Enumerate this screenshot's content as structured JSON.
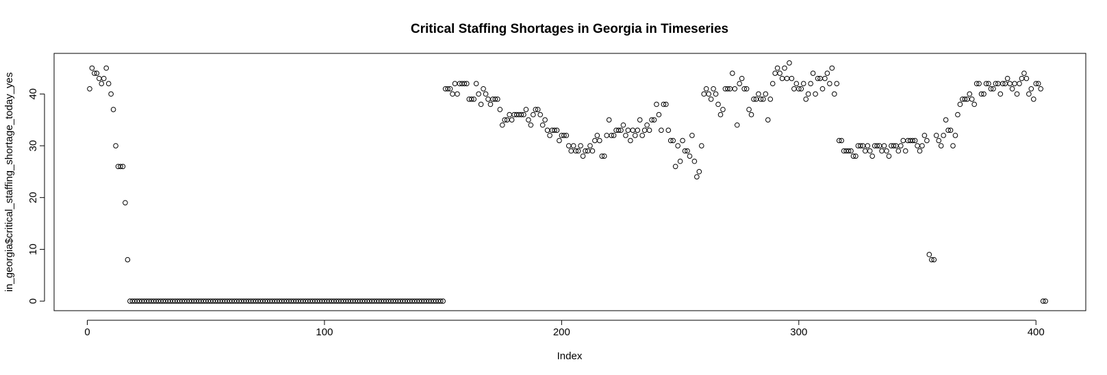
{
  "chart_data": {
    "type": "scatter",
    "title": "Critical Staffing Shortages in Georgia in Timeseries",
    "xlabel": "Index",
    "ylabel": "in_georgia$critical_staffing_shortage_today_yes",
    "xlim": [
      -14,
      421
    ],
    "ylim": [
      -1.84,
      47.84
    ],
    "xticks": [
      0,
      100,
      200,
      300,
      400
    ],
    "yticks": [
      0,
      10,
      20,
      30,
      40
    ],
    "grid": false,
    "legend": "none",
    "marker": "open-circle",
    "color": "#000000",
    "x_start": 1,
    "values": [
      41,
      45,
      44,
      44,
      43,
      42,
      43,
      45,
      42,
      40,
      37,
      30,
      26,
      26,
      26,
      19,
      8,
      0,
      0,
      0,
      0,
      0,
      0,
      0,
      0,
      0,
      0,
      0,
      0,
      0,
      0,
      0,
      0,
      0,
      0,
      0,
      0,
      0,
      0,
      0,
      0,
      0,
      0,
      0,
      0,
      0,
      0,
      0,
      0,
      0,
      0,
      0,
      0,
      0,
      0,
      0,
      0,
      0,
      0,
      0,
      0,
      0,
      0,
      0,
      0,
      0,
      0,
      0,
      0,
      0,
      0,
      0,
      0,
      0,
      0,
      0,
      0,
      0,
      0,
      0,
      0,
      0,
      0,
      0,
      0,
      0,
      0,
      0,
      0,
      0,
      0,
      0,
      0,
      0,
      0,
      0,
      0,
      0,
      0,
      0,
      0,
      0,
      0,
      0,
      0,
      0,
      0,
      0,
      0,
      0,
      0,
      0,
      0,
      0,
      0,
      0,
      0,
      0,
      0,
      0,
      0,
      0,
      0,
      0,
      0,
      0,
      0,
      0,
      0,
      0,
      0,
      0,
      0,
      0,
      0,
      0,
      0,
      0,
      0,
      0,
      0,
      0,
      0,
      0,
      0,
      0,
      0,
      0,
      0,
      0,
      41,
      41,
      41,
      40,
      42,
      40,
      42,
      42,
      42,
      42,
      39,
      39,
      39,
      42,
      40,
      38,
      41,
      40,
      39,
      38,
      39,
      39,
      39,
      37,
      34,
      35,
      35,
      36,
      35,
      36,
      36,
      36,
      36,
      36,
      37,
      35,
      34,
      36,
      37,
      37,
      36,
      34,
      35,
      33,
      32,
      33,
      33,
      33,
      31,
      32,
      32,
      32,
      30,
      29,
      30,
      29,
      29,
      30,
      28,
      29,
      29,
      30,
      29,
      31,
      32,
      31,
      28,
      28,
      32,
      35,
      32,
      32,
      33,
      33,
      33,
      34,
      32,
      33,
      31,
      33,
      32,
      33,
      35,
      32,
      33,
      34,
      33,
      35,
      35,
      38,
      36,
      33,
      38,
      38,
      33,
      31,
      31,
      26,
      30,
      27,
      31,
      29,
      29,
      28,
      32,
      27,
      24,
      25,
      30,
      40,
      41,
      40,
      39,
      41,
      40,
      38,
      36,
      37,
      41,
      41,
      41,
      44,
      41,
      34,
      42,
      43,
      41,
      41,
      37,
      36,
      39,
      39,
      40,
      39,
      39,
      40,
      35,
      39,
      42,
      44,
      45,
      44,
      43,
      45,
      43,
      46,
      43,
      41,
      42,
      41,
      41,
      42,
      39,
      40,
      42,
      44,
      40,
      43,
      43,
      41,
      43,
      44,
      42,
      45,
      40,
      42,
      31,
      31,
      29,
      29,
      29,
      29,
      28,
      28,
      30,
      30,
      30,
      29,
      30,
      29,
      28,
      30,
      30,
      30,
      29,
      30,
      29,
      28,
      30,
      30,
      30,
      29,
      30,
      31,
      29,
      31,
      31,
      31,
      31,
      30,
      29,
      30,
      32,
      31,
      9,
      8,
      8,
      32,
      31,
      30,
      32,
      35,
      33,
      33,
      30,
      32,
      36,
      38,
      39,
      39,
      39,
      40,
      39,
      38,
      42,
      42,
      40,
      40,
      42,
      42,
      41,
      41,
      42,
      42,
      40,
      42,
      42,
      43,
      42,
      41,
      42,
      40,
      42,
      43,
      44,
      43,
      40,
      41,
      39,
      42,
      42,
      41,
      0,
      0
    ]
  }
}
